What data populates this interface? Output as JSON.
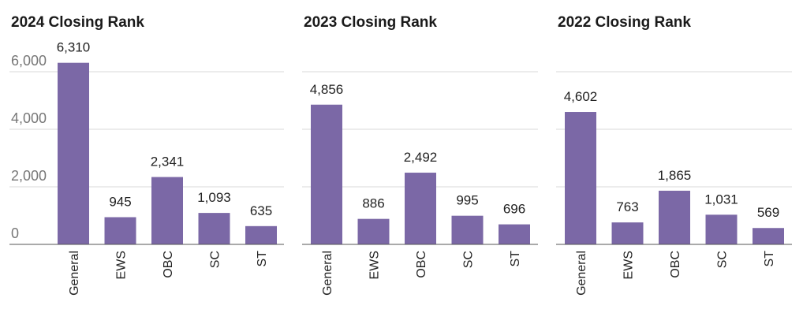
{
  "chart_data": [
    {
      "type": "bar",
      "title": "2024 Closing Rank",
      "categories": [
        "General",
        "EWS",
        "OBC",
        "SC",
        "ST"
      ],
      "values": [
        6310,
        945,
        2341,
        1093,
        635
      ],
      "value_labels": [
        "6,310",
        "945",
        "2,341",
        "1,093",
        "635"
      ],
      "xlabel": "",
      "ylabel": "",
      "ylim": [
        0,
        6000
      ],
      "y_ticks": [
        0,
        2000,
        4000,
        6000
      ],
      "y_tick_labels": [
        "0",
        "2,000",
        "4,000",
        "6,000"
      ],
      "show_y_tick_labels": true,
      "grid": true,
      "bar_color": "#7b68a6"
    },
    {
      "type": "bar",
      "title": "2023 Closing Rank",
      "categories": [
        "General",
        "EWS",
        "OBC",
        "SC",
        "ST"
      ],
      "values": [
        4856,
        886,
        2492,
        995,
        696
      ],
      "value_labels": [
        "4,856",
        "886",
        "2,492",
        "995",
        "696"
      ],
      "xlabel": "",
      "ylabel": "",
      "ylim": [
        0,
        6000
      ],
      "y_ticks": [
        0,
        2000,
        4000,
        6000
      ],
      "show_y_tick_labels": false,
      "grid": true,
      "bar_color": "#7b68a6"
    },
    {
      "type": "bar",
      "title": "2022 Closing Rank",
      "categories": [
        "General",
        "EWS",
        "OBC",
        "SC",
        "ST"
      ],
      "values": [
        4602,
        763,
        1865,
        1031,
        569
      ],
      "value_labels": [
        "4,602",
        "763",
        "1,865",
        "1,031",
        "569"
      ],
      "xlabel": "",
      "ylabel": "",
      "ylim": [
        0,
        6000
      ],
      "y_ticks": [
        0,
        2000,
        4000,
        6000
      ],
      "show_y_tick_labels": false,
      "grid": true,
      "bar_color": "#7b68a6"
    }
  ]
}
